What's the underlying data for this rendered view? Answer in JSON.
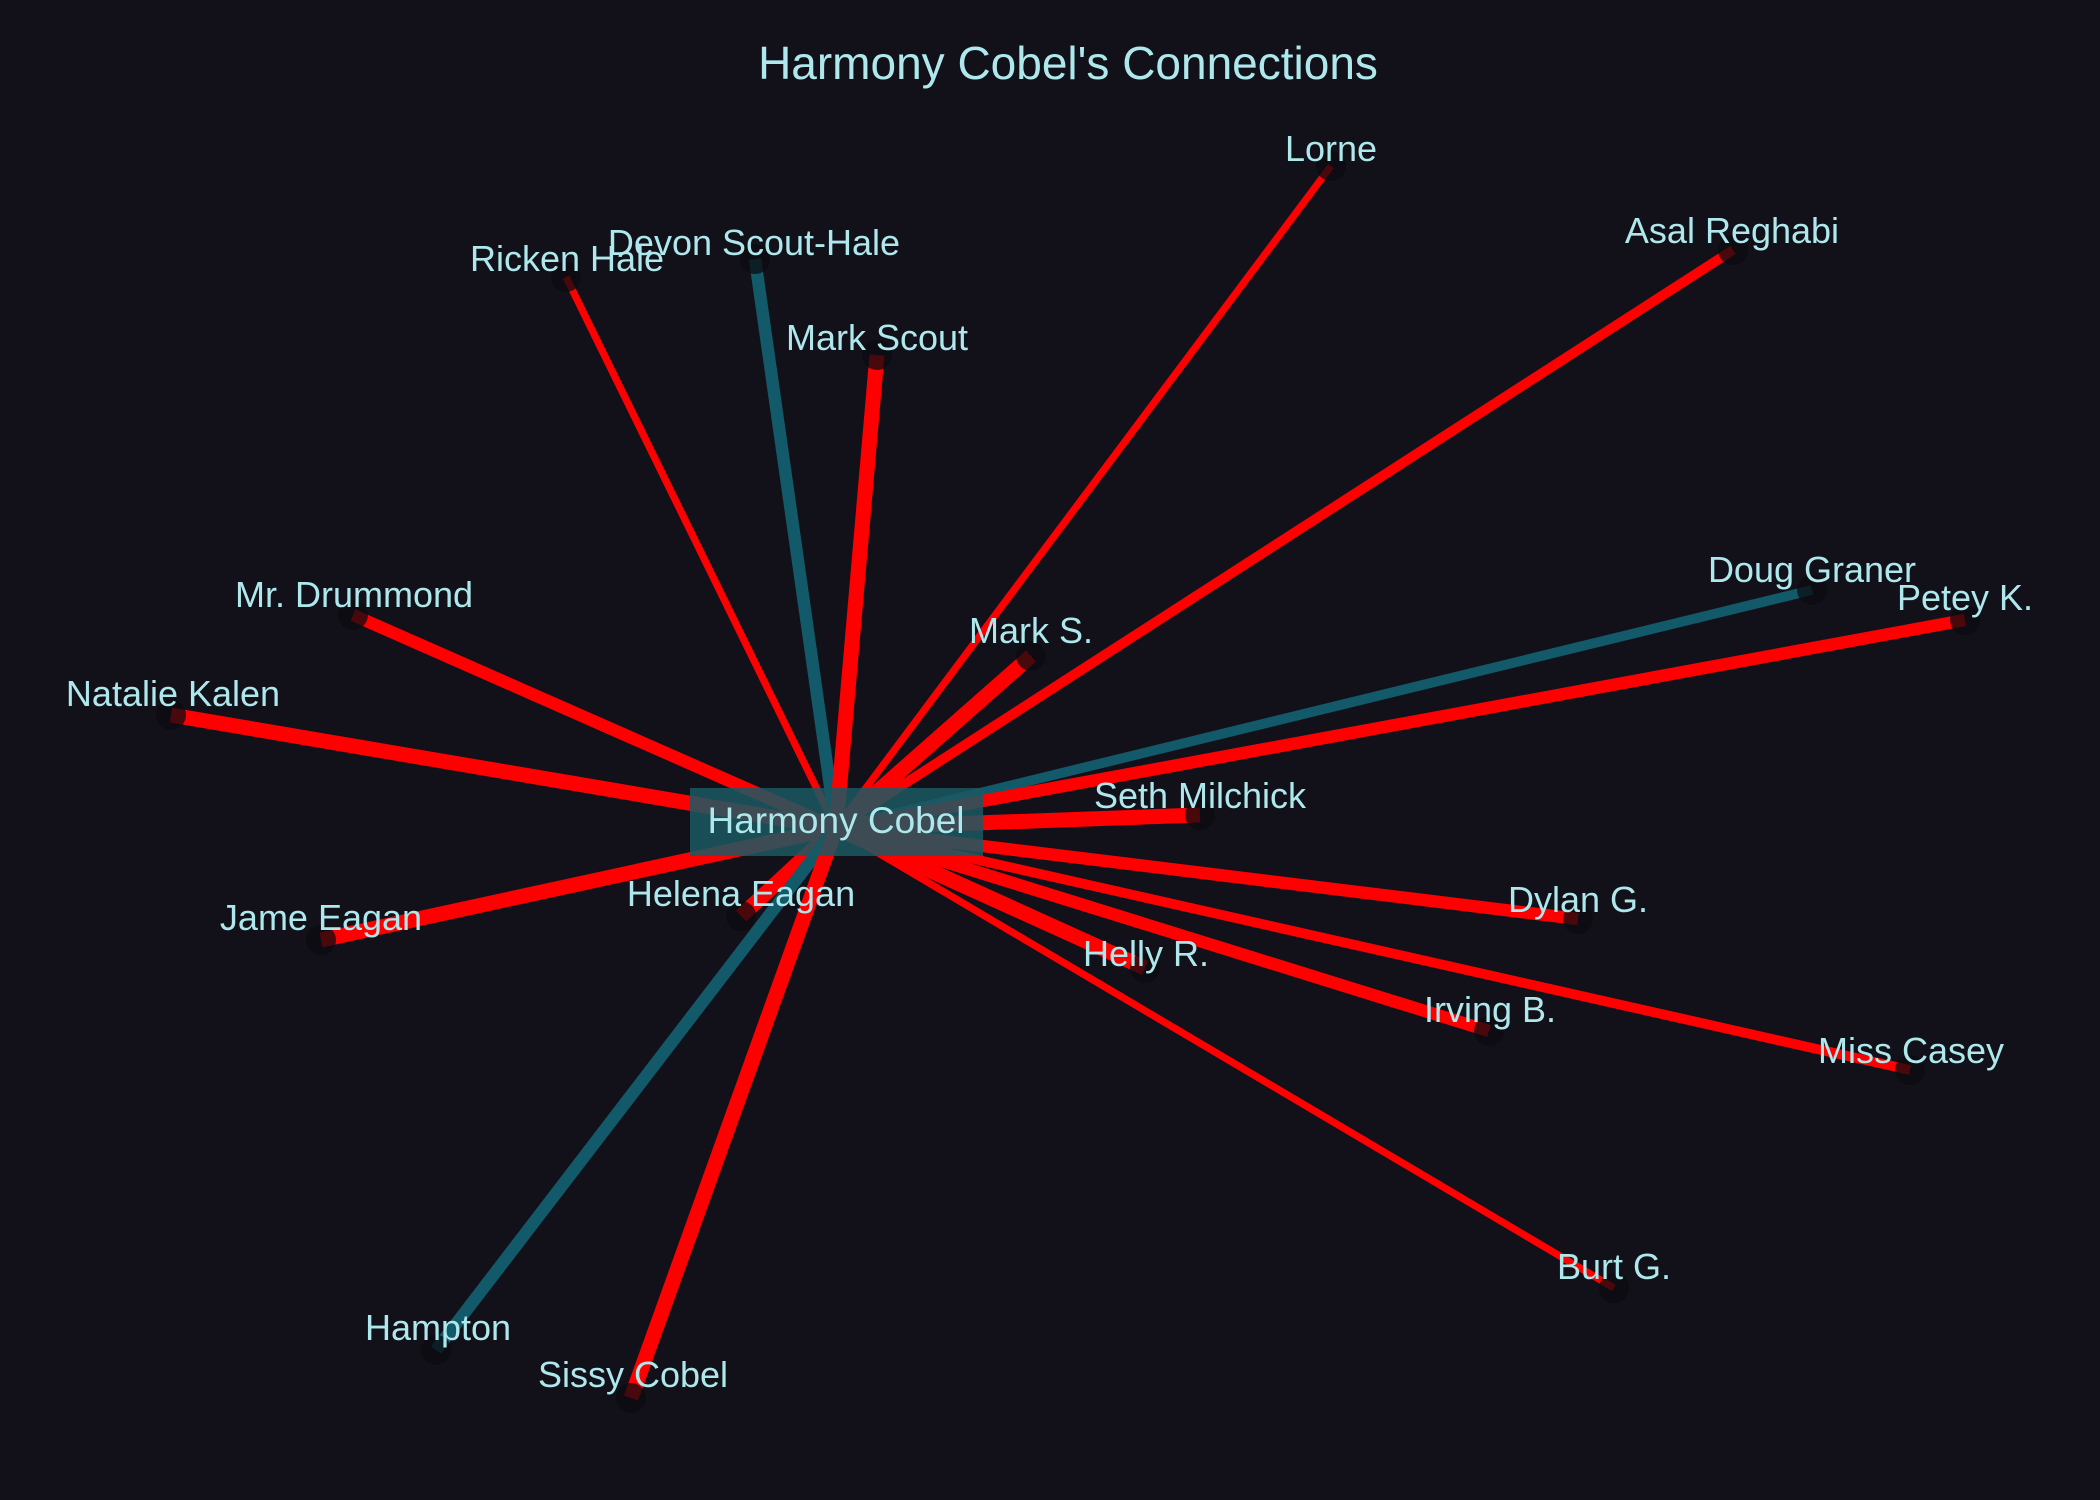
{
  "title": "Harmony Cobel's Connections",
  "colors": {
    "background": "#12111a",
    "text": "#aee8ec",
    "edge_red": "#ff0000",
    "edge_teal": "#125a6a",
    "center_box": "#1b5963",
    "node": "#0b0b10"
  },
  "graph": {
    "center": "Harmony Cobel",
    "nodes": [
      {
        "id": "lorne",
        "label": "Lorne",
        "edge_type": "red",
        "strength": 2
      },
      {
        "id": "asal-reghabi",
        "label": "Asal Reghabi",
        "edge_type": "red",
        "strength": 3
      },
      {
        "id": "ricken-hale",
        "label": "Ricken Hale",
        "edge_type": "red",
        "strength": 2
      },
      {
        "id": "devon-scout-hale",
        "label": "Devon Scout-Hale",
        "edge_type": "teal",
        "strength": 4
      },
      {
        "id": "mark-scout",
        "label": "Mark Scout",
        "edge_type": "red",
        "strength": 5
      },
      {
        "id": "doug-graner",
        "label": "Doug Graner",
        "edge_type": "teal",
        "strength": 3
      },
      {
        "id": "petey-k",
        "label": "Petey K.",
        "edge_type": "red",
        "strength": 4
      },
      {
        "id": "mr-drummond",
        "label": "Mr. Drummond",
        "edge_type": "red",
        "strength": 4
      },
      {
        "id": "mark-s",
        "label": "Mark S.",
        "edge_type": "red",
        "strength": 5
      },
      {
        "id": "natalie-kalen",
        "label": "Natalie Kalen",
        "edge_type": "red",
        "strength": 5
      },
      {
        "id": "seth-milchick",
        "label": "Seth Milchick",
        "edge_type": "red",
        "strength": 5
      },
      {
        "id": "jame-eagan",
        "label": "Jame Eagan",
        "edge_type": "red",
        "strength": 5
      },
      {
        "id": "helena-eagan",
        "label": "Helena Eagan",
        "edge_type": "red",
        "strength": 5
      },
      {
        "id": "dylan-g",
        "label": "Dylan G.",
        "edge_type": "red",
        "strength": 4
      },
      {
        "id": "helly-r",
        "label": "Helly R.",
        "edge_type": "red",
        "strength": 5
      },
      {
        "id": "irving-b",
        "label": "Irving B.",
        "edge_type": "red",
        "strength": 4
      },
      {
        "id": "miss-casey",
        "label": "Miss Casey",
        "edge_type": "red",
        "strength": 3
      },
      {
        "id": "burt-g",
        "label": "Burt G.",
        "edge_type": "red",
        "strength": 2
      },
      {
        "id": "hampton",
        "label": "Hampton",
        "edge_type": "teal",
        "strength": 4
      },
      {
        "id": "sissy-cobel",
        "label": "Sissy Cobel",
        "edge_type": "red",
        "strength": 5
      }
    ]
  }
}
